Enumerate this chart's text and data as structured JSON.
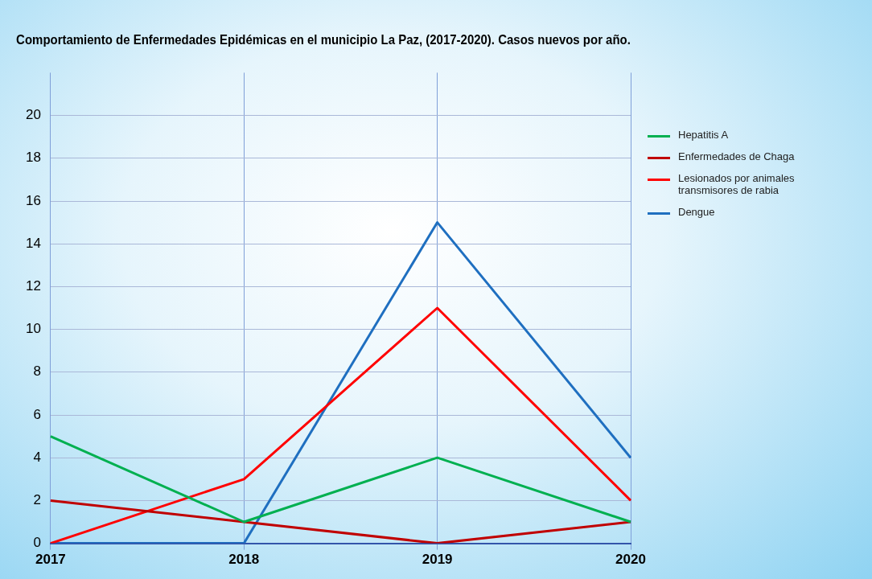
{
  "chart_data": {
    "type": "line",
    "title": "Comportamiento de Enfermedades Epidémicas en el municipio La Paz, (2017-2020). Casos nuevos por año.",
    "categories": [
      "2017",
      "2018",
      "2019",
      "2020"
    ],
    "series": [
      {
        "name": "Hepatitis A",
        "color": "#00b050",
        "values": [
          5,
          1,
          4,
          1
        ]
      },
      {
        "name": "Enfermedades de Chaga",
        "color": "#c00000",
        "values": [
          2,
          1,
          0,
          1
        ]
      },
      {
        "name": "Lesionados por animales transmisores de rabia",
        "color": "#ff0000",
        "values": [
          0,
          3,
          11,
          2
        ]
      },
      {
        "name": "Dengue",
        "color": "#1f6fc0",
        "values": [
          0,
          0,
          15,
          4
        ]
      }
    ],
    "ylim": [
      0,
      22
    ],
    "yticks": [
      0,
      2,
      4,
      6,
      8,
      10,
      12,
      14,
      16,
      18,
      20
    ],
    "grid": true,
    "legend": "right",
    "marker": "none",
    "line_style": "solid"
  }
}
